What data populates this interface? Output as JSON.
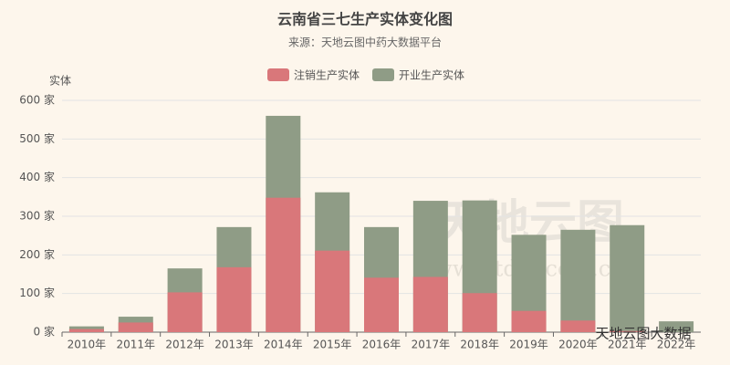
{
  "chart_data": {
    "type": "bar",
    "title": "云南省三七生产实体变化图",
    "subtitle": "来源：天地云图中药大数据平台",
    "y_label": "实体",
    "categories": [
      "2010年",
      "2011年",
      "2012年",
      "2013年",
      "2014年",
      "2015年",
      "2016年",
      "2017年",
      "2018年",
      "2019年",
      "2020年",
      "2021年",
      "2022年"
    ],
    "series": [
      {
        "name": "注销生产实体",
        "color": "#d9777a",
        "values": [
          8,
          25,
          103,
          168,
          348,
          211,
          141,
          143,
          101,
          55,
          30,
          3,
          0
        ]
      },
      {
        "name": "开业生产实体",
        "color": "#8f9c86",
        "values": [
          15,
          40,
          165,
          272,
          560,
          362,
          272,
          340,
          341,
          252,
          265,
          277,
          28
        ]
      }
    ],
    "ylim": [
      0,
      600
    ],
    "yticks": [
      {
        "value": 0,
        "label": "0 家"
      },
      {
        "value": 100,
        "label": "100 家"
      },
      {
        "value": 200,
        "label": "200 家"
      },
      {
        "value": 300,
        "label": "300 家"
      },
      {
        "value": 400,
        "label": "400 家"
      },
      {
        "value": 500,
        "label": "500 家"
      },
      {
        "value": 600,
        "label": "600 家"
      }
    ],
    "grid": true,
    "watermark": "天地云图",
    "watermark_url": "www.tdyt.com.cn",
    "footer": "天地云图大数据"
  }
}
